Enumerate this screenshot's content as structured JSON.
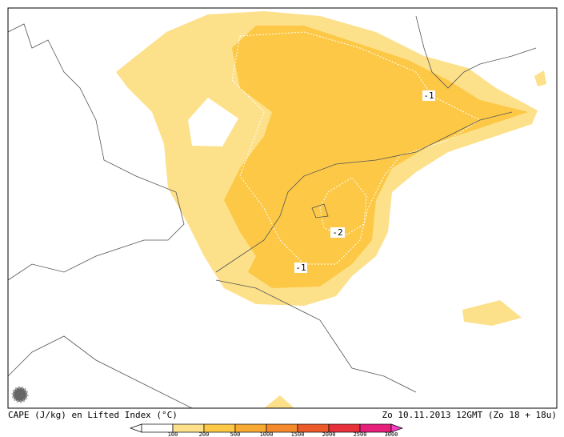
{
  "map": {
    "caption": "CAPE (J/kg) en Lifted Index (°C)",
    "timestamp": "Zo 10.11.2013 12GMT (Zo 18 + 18u)",
    "contour_labels": [
      "-1",
      "-2",
      "-1"
    ],
    "legend": {
      "ticks": [
        100,
        200,
        500,
        1000,
        1500,
        2000,
        2500,
        3000
      ],
      "colors": [
        "#fde08a",
        "#fcc846",
        "#f9aa33",
        "#f48a2c",
        "#ec5a2a",
        "#e8303a",
        "#e6207a"
      ]
    }
  }
}
